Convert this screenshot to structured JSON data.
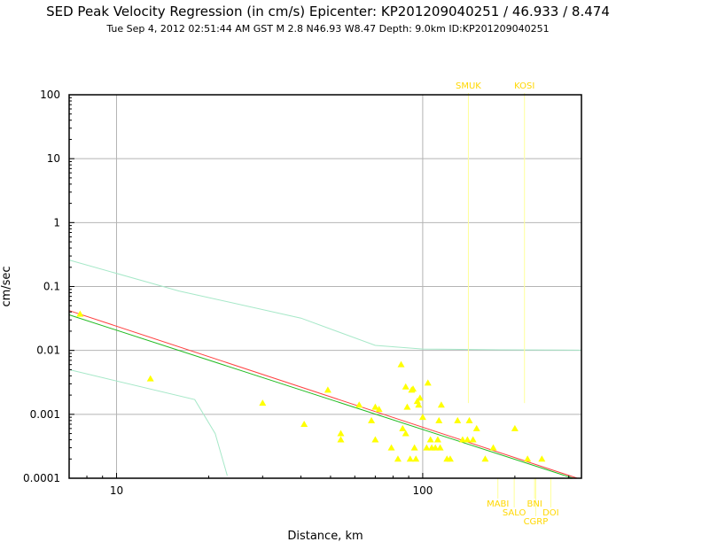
{
  "header": {
    "title": "SED Peak Velocity Regression (in cm/s) Epicenter: KP201209040251 / 46.933 / 8.474",
    "subtitle": "Tue Sep  4, 2012 02:51:44 AM GST   M 2.8   N46.93 W8.47   Depth: 9.0km   ID:KP201209040251"
  },
  "colors": {
    "points": "#ffff00",
    "regression_red": "#ff4040",
    "regression_green": "#22bb22",
    "bounds": "#a6e8c8",
    "station_labels": "#ffd700",
    "grid": "#b4b4b4"
  },
  "chart_data": {
    "type": "scatter",
    "xlabel": "Distance, km",
    "ylabel": "cm/sec",
    "xscale": "log",
    "yscale": "log",
    "xlim": [
      7,
      330
    ],
    "ylim": [
      0.0001,
      100
    ],
    "grid": true,
    "x_tick_labels": [
      "10",
      "100"
    ],
    "x_ticks": [
      10,
      100
    ],
    "y_tick_labels": [
      "100",
      "10",
      "1",
      "0.1",
      "0.01",
      "0.001",
      "0.0001"
    ],
    "y_ticks": [
      100,
      10,
      1,
      0.1,
      0.01,
      0.001,
      0.0001
    ],
    "points": [
      [
        7.6,
        0.037
      ],
      [
        12.9,
        0.0036
      ],
      [
        30,
        0.0015
      ],
      [
        41,
        0.0007
      ],
      [
        49,
        0.0024
      ],
      [
        54,
        0.0005
      ],
      [
        54,
        0.0004
      ],
      [
        62,
        0.0014
      ],
      [
        68,
        0.0008
      ],
      [
        70,
        0.0004
      ],
      [
        70,
        0.0013
      ],
      [
        72,
        0.0012
      ],
      [
        79,
        0.0003
      ],
      [
        83,
        0.0002
      ],
      [
        85,
        0.006
      ],
      [
        86,
        0.0006
      ],
      [
        88,
        0.0027
      ],
      [
        88,
        0.0005
      ],
      [
        89,
        0.0013
      ],
      [
        91,
        0.0002
      ],
      [
        92,
        0.0024
      ],
      [
        93,
        0.0025
      ],
      [
        94,
        0.0003
      ],
      [
        95,
        0.0002
      ],
      [
        96,
        0.0016
      ],
      [
        97,
        0.0014
      ],
      [
        98,
        0.0018
      ],
      [
        100,
        0.0009
      ],
      [
        103,
        0.0003
      ],
      [
        104,
        0.0031
      ],
      [
        106,
        0.0004
      ],
      [
        107,
        0.0003
      ],
      [
        110,
        0.0003
      ],
      [
        112,
        0.0004
      ],
      [
        113,
        0.0008
      ],
      [
        114,
        0.0003
      ],
      [
        115,
        0.0014
      ],
      [
        120,
        0.0002
      ],
      [
        123,
        0.0002
      ],
      [
        130,
        0.0008
      ],
      [
        135,
        0.0004
      ],
      [
        140,
        0.0004
      ],
      [
        142,
        0.0008
      ],
      [
        146,
        0.0004
      ],
      [
        150,
        0.0006
      ],
      [
        160,
        0.0002
      ],
      [
        170,
        0.0003
      ],
      [
        200,
        0.0006
      ],
      [
        220,
        0.0002
      ],
      [
        245,
        0.0002
      ]
    ],
    "regression_red": [
      [
        7,
        0.042
      ],
      [
        320,
        0.0001
      ]
    ],
    "regression_green": [
      [
        7,
        0.036
      ],
      [
        310,
        0.0001
      ]
    ],
    "upper_bound": [
      [
        7,
        0.26
      ],
      [
        16,
        0.085
      ],
      [
        40,
        0.032
      ],
      [
        70,
        0.012
      ],
      [
        100,
        0.0105
      ],
      [
        180,
        0.0102
      ],
      [
        330,
        0.0101
      ]
    ],
    "lower_bound": [
      [
        7,
        0.005
      ],
      [
        18,
        0.0017
      ],
      [
        21,
        0.0005
      ],
      [
        23,
        0.00011
      ]
    ],
    "stations_top": [
      {
        "label": "SMUK",
        "x": 141
      },
      {
        "label": "KOSI",
        "x": 215
      }
    ],
    "stations_bottom": [
      {
        "label": "MABI",
        "x": 176,
        "row": 0
      },
      {
        "label": "SALO",
        "x": 199,
        "row": 1
      },
      {
        "label": "BNI",
        "x": 232,
        "row": 0
      },
      {
        "label": "CGRP",
        "x": 234,
        "row": 2
      },
      {
        "label": "DOI",
        "x": 262,
        "row": 1
      }
    ]
  }
}
